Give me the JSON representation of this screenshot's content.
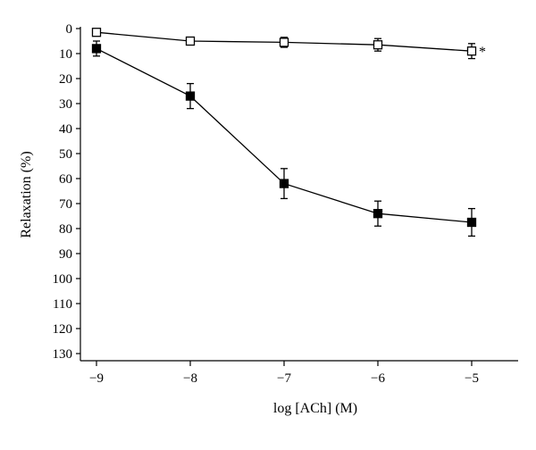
{
  "chart_data": {
    "type": "line",
    "title": "",
    "xlabel": "log [ACh] (M)",
    "ylabel": "Relaxation (%)",
    "xlim": [
      -9,
      -4.5
    ],
    "ylim": [
      0,
      130
    ],
    "y_inverted": true,
    "grid": false,
    "x_ticks": [
      -9,
      -8,
      -7,
      -6,
      -5
    ],
    "x_tick_labels": [
      "−9",
      "−8",
      "−7",
      "−6",
      "−5"
    ],
    "y_ticks": [
      0,
      10,
      20,
      30,
      40,
      50,
      60,
      70,
      80,
      90,
      100,
      110,
      120,
      130
    ],
    "y_tick_labels": [
      "0",
      "10",
      "20",
      "30",
      "40",
      "50",
      "60",
      "70",
      "80",
      "90",
      "100",
      "110",
      "120",
      "130"
    ],
    "series": [
      {
        "marker": "open-square",
        "color": "#000000",
        "x": [
          -9,
          -8,
          -7,
          -6,
          -5
        ],
        "y": [
          1.5,
          5,
          5.5,
          6.5,
          9
        ],
        "error": [
          0,
          1.5,
          2,
          2.5,
          3
        ]
      },
      {
        "marker": "filled-square",
        "color": "#000000",
        "x": [
          -9,
          -8,
          -7,
          -6,
          -5
        ],
        "y": [
          8,
          27,
          62,
          74,
          77.5
        ],
        "error": [
          3,
          5,
          6,
          5,
          5.5
        ]
      }
    ],
    "annotations": [
      {
        "text": "*",
        "x": -5,
        "y": 9
      }
    ]
  }
}
